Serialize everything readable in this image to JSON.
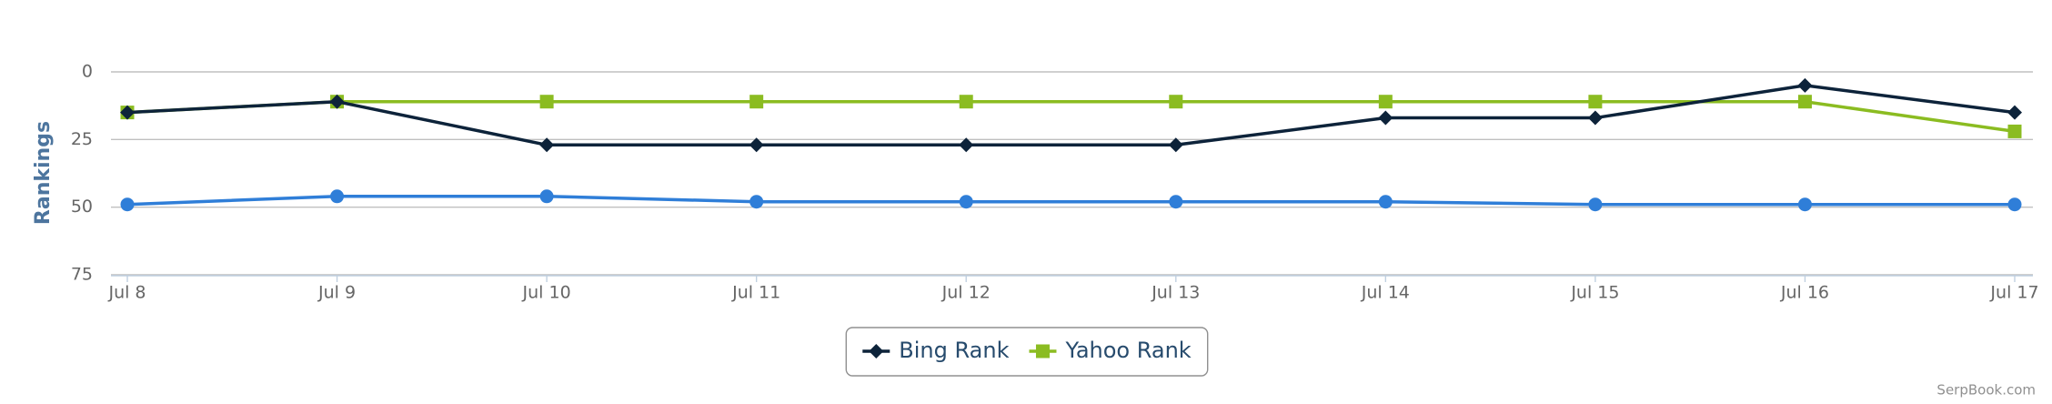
{
  "chart_data": {
    "type": "line",
    "y_axis_label": "Rankings",
    "credit": "SerpBook.com",
    "categories": [
      "Jul 8",
      "Jul 9",
      "Jul 10",
      "Jul 11",
      "Jul 12",
      "Jul 13",
      "Jul 14",
      "Jul 15",
      "Jul 16",
      "Jul 17"
    ],
    "series": [
      {
        "name": "Bing Rank",
        "color": "#0d233a",
        "marker": "diamond",
        "values": [
          15,
          11,
          27,
          27,
          27,
          27,
          17,
          17,
          5,
          15
        ]
      },
      {
        "name": "Yahoo Rank",
        "color": "#8bbc21",
        "marker": "square",
        "values": [
          15,
          11,
          11,
          11,
          11,
          11,
          11,
          11,
          11,
          22
        ]
      },
      {
        "color": "#2f7ed8",
        "marker": "circle",
        "values": [
          49,
          46,
          46,
          48,
          48,
          48,
          48,
          49,
          49,
          49
        ]
      }
    ],
    "ylim": [
      0,
      75
    ],
    "yticks": [
      0,
      25,
      50,
      75
    ],
    "reversed": true,
    "grid": true
  }
}
